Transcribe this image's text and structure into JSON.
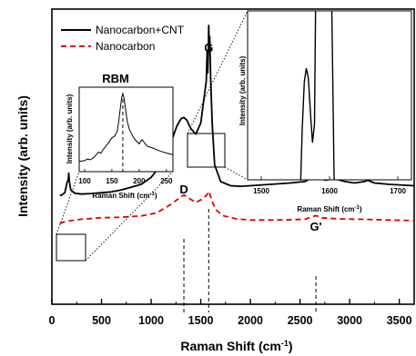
{
  "chart_data": {
    "type": "line",
    "xlabel": "Raman Shift (cm",
    "xlabel_sup": "-1",
    "xlabel_end": ")",
    "ylabel": "Intensity (arb. units)",
    "xlim": [
      0,
      3650
    ],
    "xticks": [
      "0",
      "500",
      "1000",
      "1500",
      "2000",
      "2500",
      "3000",
      "3500"
    ],
    "y_ticks_shown": false,
    "legend": {
      "placement": "top-left"
    },
    "series": [
      {
        "name": "Nanocarbon+CNT",
        "color": "#000000",
        "style": "solid",
        "points": [
          [
            80,
            0.39
          ],
          [
            100,
            0.392
          ],
          [
            130,
            0.4
          ],
          [
            155,
            0.44
          ],
          [
            165,
            0.445
          ],
          [
            170,
            0.47
          ],
          [
            176,
            0.44
          ],
          [
            190,
            0.41
          ],
          [
            230,
            0.398
          ],
          [
            300,
            0.395
          ],
          [
            400,
            0.397
          ],
          [
            500,
            0.4
          ],
          [
            600,
            0.403
          ],
          [
            700,
            0.41
          ],
          [
            800,
            0.42
          ],
          [
            900,
            0.43
          ],
          [
            1000,
            0.455
          ],
          [
            1100,
            0.5
          ],
          [
            1200,
            0.58
          ],
          [
            1260,
            0.64
          ],
          [
            1300,
            0.665
          ],
          [
            1330,
            0.67
          ],
          [
            1360,
            0.66
          ],
          [
            1400,
            0.63
          ],
          [
            1450,
            0.61
          ],
          [
            1500,
            0.65
          ],
          [
            1530,
            0.73
          ],
          [
            1555,
            0.8
          ],
          [
            1565,
            0.91
          ],
          [
            1570,
            0.83
          ],
          [
            1576,
            0.9
          ],
          [
            1580,
            1.0
          ],
          [
            1584,
            0.92
          ],
          [
            1590,
            0.96
          ],
          [
            1600,
            0.8
          ],
          [
            1615,
            0.65
          ],
          [
            1640,
            0.5
          ],
          [
            1700,
            0.44
          ],
          [
            1800,
            0.425
          ],
          [
            1900,
            0.423
          ],
          [
            2000,
            0.425
          ],
          [
            2200,
            0.43
          ],
          [
            2400,
            0.435
          ],
          [
            2550,
            0.44
          ],
          [
            2620,
            0.455
          ],
          [
            2660,
            0.48
          ],
          [
            2690,
            0.46
          ],
          [
            2750,
            0.445
          ],
          [
            2850,
            0.45
          ],
          [
            2950,
            0.44
          ],
          [
            3050,
            0.435
          ],
          [
            3150,
            0.44
          ],
          [
            3180,
            0.445
          ],
          [
            3250,
            0.435
          ],
          [
            3400,
            0.43
          ],
          [
            3650,
            0.425
          ]
        ]
      },
      {
        "name": "Nanocarbon",
        "color": "#e00000",
        "style": "dashed",
        "points": [
          [
            80,
            0.29
          ],
          [
            150,
            0.298
          ],
          [
            300,
            0.305
          ],
          [
            500,
            0.31
          ],
          [
            700,
            0.312
          ],
          [
            900,
            0.317
          ],
          [
            1050,
            0.327
          ],
          [
            1150,
            0.347
          ],
          [
            1250,
            0.372
          ],
          [
            1330,
            0.392
          ],
          [
            1380,
            0.38
          ],
          [
            1450,
            0.365
          ],
          [
            1520,
            0.378
          ],
          [
            1560,
            0.392
          ],
          [
            1585,
            0.405
          ],
          [
            1610,
            0.372
          ],
          [
            1650,
            0.34
          ],
          [
            1720,
            0.318
          ],
          [
            1850,
            0.307
          ],
          [
            2000,
            0.302
          ],
          [
            2200,
            0.302
          ],
          [
            2400,
            0.303
          ],
          [
            2550,
            0.305
          ],
          [
            2660,
            0.318
          ],
          [
            2720,
            0.31
          ],
          [
            2900,
            0.306
          ],
          [
            3100,
            0.305
          ],
          [
            3400,
            0.302
          ],
          [
            3650,
            0.3
          ]
        ]
      }
    ],
    "peak_labels": [
      {
        "text": "D",
        "x": 1330
      },
      {
        "text": "G",
        "x": 1580
      },
      {
        "text": "G'",
        "x": 2660
      }
    ],
    "inset_left": {
      "title": "RBM",
      "xlabel": "Raman Shift (cm",
      "xlabel_sup": "-1",
      "xlabel_end": ")",
      "ylabel": "Intensity (arb. units)",
      "xlim": [
        90,
        262
      ],
      "xticks": [
        "100",
        "150",
        "200",
        "250"
      ],
      "marker_x": 170,
      "points": [
        [
          90,
          0.12
        ],
        [
          100,
          0.13
        ],
        [
          105,
          0.15
        ],
        [
          110,
          0.14
        ],
        [
          115,
          0.16
        ],
        [
          120,
          0.19
        ],
        [
          125,
          0.23
        ],
        [
          130,
          0.22
        ],
        [
          135,
          0.27
        ],
        [
          140,
          0.31
        ],
        [
          145,
          0.35
        ],
        [
          150,
          0.4
        ],
        [
          155,
          0.42
        ],
        [
          160,
          0.48
        ],
        [
          163,
          0.62
        ],
        [
          166,
          0.78
        ],
        [
          168,
          0.88
        ],
        [
          170,
          0.92
        ],
        [
          172,
          0.88
        ],
        [
          175,
          0.74
        ],
        [
          178,
          0.6
        ],
        [
          182,
          0.5
        ],
        [
          186,
          0.45
        ],
        [
          190,
          0.4
        ],
        [
          195,
          0.36
        ],
        [
          200,
          0.33
        ],
        [
          205,
          0.38
        ],
        [
          210,
          0.34
        ],
        [
          215,
          0.3
        ],
        [
          220,
          0.29
        ],
        [
          225,
          0.28
        ],
        [
          232,
          0.26
        ],
        [
          240,
          0.24
        ],
        [
          250,
          0.22
        ],
        [
          262,
          0.2
        ]
      ]
    },
    "inset_right": {
      "xlabel": "Raman Shift (cm",
      "xlabel_sup": "-1",
      "xlabel_end": ")",
      "ylabel": "Intensity (arb. units)",
      "xlim": [
        1480,
        1720
      ],
      "xticks": [
        "1500",
        "1600",
        "1700"
      ],
      "points": [
        [
          1557,
          -0.1
        ],
        [
          1560,
          0.3
        ],
        [
          1563,
          0.58
        ],
        [
          1566,
          0.66
        ],
        [
          1569,
          0.6
        ],
        [
          1572,
          0.4
        ],
        [
          1575,
          0.22
        ],
        [
          1578,
          0.33
        ],
        [
          1580,
          1.2
        ],
        [
          1583,
          1.3
        ],
        [
          1585,
          1.2
        ],
        [
          1590,
          1.15
        ],
        [
          1597,
          1.2
        ],
        [
          1600,
          1.3
        ],
        [
          1603,
          1.1
        ],
        [
          1605,
          0.5
        ],
        [
          1607,
          -0.1
        ]
      ]
    }
  }
}
